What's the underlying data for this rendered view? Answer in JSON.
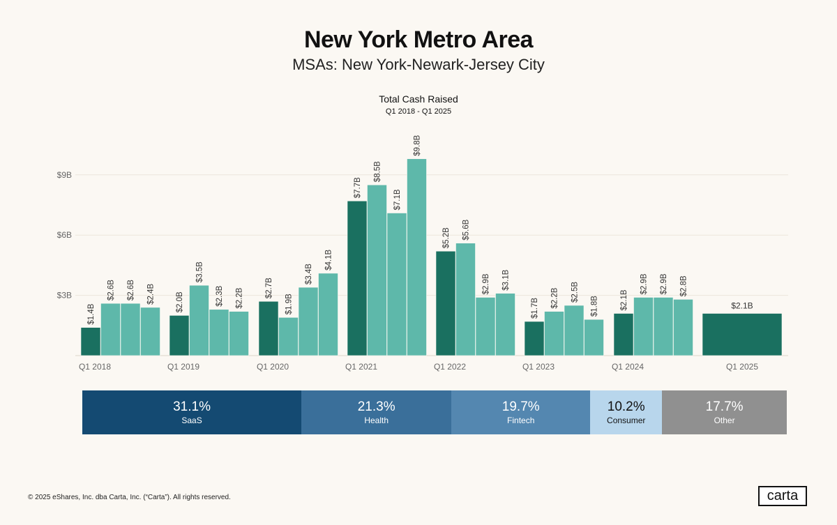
{
  "header": {
    "title": "New York Metro Area",
    "subtitle": "MSAs: New York-Newark-Jersey City"
  },
  "chart_data": {
    "type": "bar",
    "title": "Total Cash Raised",
    "subtitle": "Q1 2018 - Q1 2025",
    "xlabel": "",
    "ylabel": "",
    "ylim": [
      0,
      10.5
    ],
    "y_ticks": [
      3,
      6,
      9
    ],
    "y_tick_labels": [
      "$3B",
      "$6B",
      "$9B"
    ],
    "unit": "$B",
    "groups": [
      {
        "label": "Q1 2018",
        "values": [
          1.4,
          2.6,
          2.6,
          2.4
        ],
        "labels": [
          "$1.4B",
          "$2.6B",
          "$2.6B",
          "$2.4B"
        ]
      },
      {
        "label": "Q1 2019",
        "values": [
          2.0,
          3.5,
          2.3,
          2.2
        ],
        "labels": [
          "$2.0B",
          "$3.5B",
          "$2.3B",
          "$2.2B"
        ]
      },
      {
        "label": "Q1 2020",
        "values": [
          2.7,
          1.9,
          3.4,
          4.1
        ],
        "labels": [
          "$2.7B",
          "$1.9B",
          "$3.4B",
          "$4.1B"
        ]
      },
      {
        "label": "Q1 2021",
        "values": [
          7.7,
          8.5,
          7.1,
          9.8
        ],
        "labels": [
          "$7.7B",
          "$8.5B",
          "$7.1B",
          "$9.8B"
        ]
      },
      {
        "label": "Q1 2022",
        "values": [
          5.2,
          5.6,
          2.9,
          3.1
        ],
        "labels": [
          "$5.2B",
          "$5.6B",
          "$2.9B",
          "$3.1B"
        ]
      },
      {
        "label": "Q1 2023",
        "values": [
          1.7,
          2.2,
          2.5,
          1.8
        ],
        "labels": [
          "$1.7B",
          "$2.2B",
          "$2.5B",
          "$1.8B"
        ]
      },
      {
        "label": "Q1 2024",
        "values": [
          2.1,
          2.9,
          2.9,
          2.8
        ],
        "labels": [
          "$2.1B",
          "$2.9B",
          "$2.9B",
          "$2.8B"
        ]
      },
      {
        "label": "Q1 2025",
        "values": [
          2.1
        ],
        "labels": [
          "$2.1B"
        ]
      }
    ],
    "colors": {
      "q1": "#1a7060",
      "other": "#5eb8aa",
      "grid": "#ece6db",
      "axis_text": "#666666"
    }
  },
  "sector_breakdown": [
    {
      "pct": "31.1%",
      "label": "SaaS",
      "share": 31.1,
      "color": "#144a72",
      "text_color": "#ffffff"
    },
    {
      "pct": "21.3%",
      "label": "Health",
      "share": 21.3,
      "color": "#3a6f9a",
      "text_color": "#ffffff"
    },
    {
      "pct": "19.7%",
      "label": "Fintech",
      "share": 19.7,
      "color": "#5487b0",
      "text_color": "#ffffff"
    },
    {
      "pct": "10.2%",
      "label": "Consumer",
      "share": 10.2,
      "color": "#b8d6ec",
      "text_color": "#111111"
    },
    {
      "pct": "17.7%",
      "label": "Other",
      "share": 17.7,
      "color": "#909090",
      "text_color": "#ffffff"
    }
  ],
  "footer": {
    "copyright": "© 2025 eShares, Inc. dba Carta, Inc. (“Carta”). All rights reserved.",
    "logo": "carta"
  }
}
